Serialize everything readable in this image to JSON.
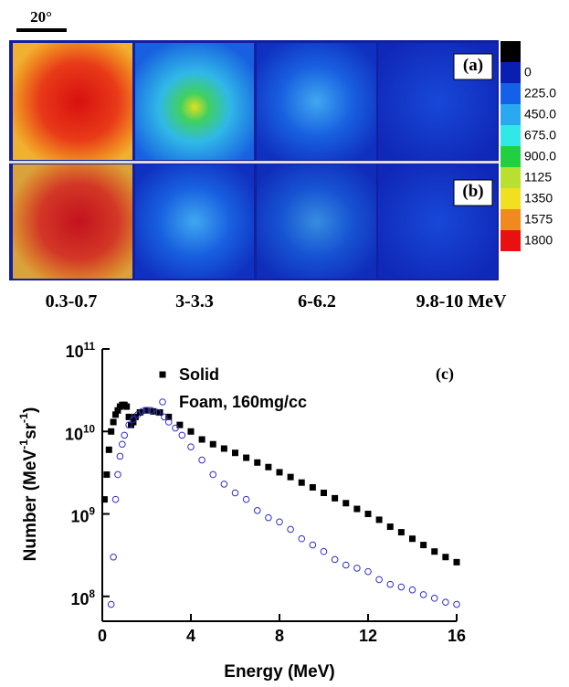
{
  "figure_top": {
    "scale_bar": "20°",
    "panel_labels": [
      "(a)",
      "(b)"
    ],
    "energy_labels": [
      "0.3-0.7",
      "3-3.3",
      "6-6.2",
      "9.8-10 MeV"
    ],
    "colorbar": {
      "colors": [
        "#000000",
        "#0a1fb0",
        "#1560e8",
        "#2aa8f0",
        "#30e8e8",
        "#20d040",
        "#b8e030",
        "#f0e020",
        "#f08a20",
        "#e81010"
      ],
      "ticks": [
        0,
        {
          "value": 225,
          "label": "225.0"
        },
        {
          "value": 450,
          "label": "450.0"
        },
        {
          "value": 675,
          "label": "675.0"
        },
        {
          "value": 900,
          "label": "900.0"
        },
        1125,
        1350,
        1575,
        1800
      ]
    }
  },
  "chart_data": {
    "type": "scatter",
    "xlabel": "Energy (MeV)",
    "ylabel": "Number (MeV^-1sr^-1)",
    "annotation": "(c)",
    "xlim": [
      0,
      16
    ],
    "xticks": [
      0,
      4,
      8,
      12,
      16
    ],
    "ylim": [
      50000000,
      100000000000
    ],
    "log_y": true,
    "yticks": [
      {
        "value": 100000000,
        "label": "10^8"
      },
      {
        "value": 1000000000,
        "label": "10^9"
      },
      {
        "value": 10000000000,
        "label": "10^10"
      },
      {
        "value": 100000000000,
        "label": "10^11"
      }
    ],
    "legend": "upper left",
    "series": [
      {
        "name": "Solid",
        "color": "#000000",
        "marker": "square",
        "x": [
          0.1,
          0.2,
          0.3,
          0.4,
          0.5,
          0.6,
          0.7,
          0.8,
          0.9,
          1.0,
          1.1,
          1.2,
          1.3,
          1.4,
          1.5,
          1.7,
          2.0,
          2.3,
          2.6,
          3.0,
          3.5,
          4.0,
          4.5,
          5.0,
          5.5,
          6.0,
          6.5,
          7.0,
          7.5,
          8.0,
          8.5,
          9.0,
          9.5,
          10.0,
          10.5,
          11.0,
          11.5,
          12.0,
          12.5,
          13.0,
          13.5,
          14.0,
          14.5,
          15.0,
          15.5,
          16.0
        ],
        "values": [
          1500000000.0,
          3000000000.0,
          6000000000.0,
          10000000000.0,
          13000000000.0,
          16000000000.0,
          18000000000.0,
          20000000000.0,
          21000000000.0,
          21000000000.0,
          20000000000.0,
          15000000000.0,
          12000000000.0,
          13000000000.0,
          15000000000.0,
          17000000000.0,
          18000000000.0,
          17500000000.0,
          17000000000.0,
          15000000000.0,
          12000000000.0,
          10000000000.0,
          8000000000.0,
          7000000000.0,
          6200000000.0,
          5500000000.0,
          4800000000.0,
          4200000000.0,
          3700000000.0,
          3200000000.0,
          2800000000.0,
          2400000000.0,
          2100000000.0,
          1800000000.0,
          1550000000.0,
          1350000000.0,
          1150000000.0,
          1000000000.0,
          850000000.0,
          700000000.0,
          600000000.0,
          500000000.0,
          420000000.0,
          350000000.0,
          300000000.0,
          260000000.0
        ]
      },
      {
        "name": "Foam, 160mg/cc",
        "color": "#3030c0",
        "marker": "open-circle",
        "x": [
          0.4,
          0.5,
          0.6,
          0.7,
          0.8,
          0.9,
          1.0,
          1.2,
          1.4,
          1.6,
          1.8,
          2.0,
          2.2,
          2.5,
          2.8,
          3.0,
          3.3,
          3.6,
          4.0,
          4.5,
          5.0,
          5.5,
          6.0,
          6.5,
          7.0,
          7.5,
          8.0,
          8.5,
          9.0,
          9.5,
          10.0,
          10.5,
          11.0,
          11.5,
          12.0,
          12.5,
          13.0,
          13.5,
          14.0,
          14.5,
          15.0,
          15.5,
          16.0
        ],
        "values": [
          80000000.0,
          300000000.0,
          1500000000.0,
          3000000000.0,
          5000000000.0,
          7000000000.0,
          9000000000.0,
          12000000000.0,
          14000000000.0,
          16000000000.0,
          17500000000.0,
          18000000000.0,
          18000000000.0,
          17000000000.0,
          15000000000.0,
          13000000000.0,
          11000000000.0,
          9000000000.0,
          6500000000.0,
          4500000000.0,
          3000000000.0,
          2300000000.0,
          1800000000.0,
          1500000000.0,
          1100000000.0,
          900000000.0,
          800000000.0,
          650000000.0,
          500000000.0,
          420000000.0,
          350000000.0,
          280000000.0,
          240000000.0,
          220000000.0,
          200000000.0,
          160000000.0,
          140000000.0,
          130000000.0,
          120000000.0,
          105000000.0,
          95000000.0,
          85000000.0,
          80000000.0
        ]
      }
    ]
  }
}
